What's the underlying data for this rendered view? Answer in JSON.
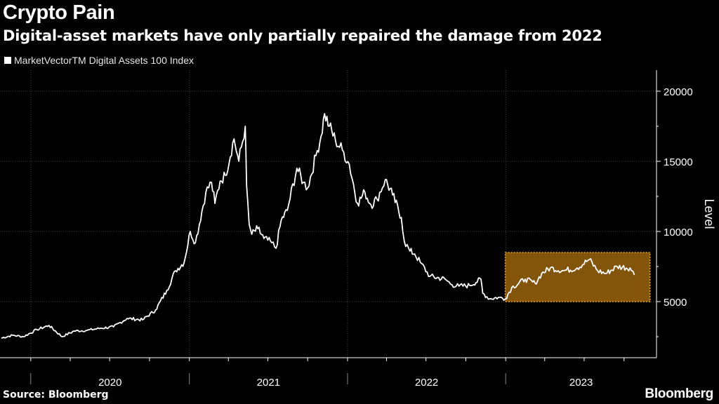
{
  "header": {
    "title": "Crypto Pain",
    "subtitle": "Digital-asset markets have only partially repaired the damage from 2022"
  },
  "footer": {
    "source": "Source: Bloomberg",
    "brand": "Bloomberg"
  },
  "colors": {
    "background": "#000000",
    "line": "#ffffff",
    "highlight_fill": "#8a5a0c",
    "highlight_border": "#f5a623",
    "grid": "#444444"
  },
  "chart_data": {
    "type": "line",
    "title": "Crypto Pain",
    "subtitle": "Digital-asset markets have only partially repaired the damage from 2022",
    "ylabel": "Level",
    "ylim": [
      1000,
      21500
    ],
    "xlim": [
      "2019-10-22",
      "2023-12-15"
    ],
    "y_ticks": [
      5000,
      10000,
      15000,
      20000
    ],
    "x_tick_labels": [
      "2020",
      "2021",
      "2022",
      "2023"
    ],
    "grid": true,
    "legend_position": "top-left",
    "highlight": {
      "x_start": "2022-12-31",
      "x_end": "2023-11-30",
      "y_start": 5000,
      "y_end": 8500
    },
    "series": [
      {
        "name": "MarketVectorTM Digital Assets 100 Index",
        "x": [
          "2019-10-25",
          "2019-11-20",
          "2019-12-15",
          "2020-01-15",
          "2020-02-12",
          "2020-03-13",
          "2020-04-10",
          "2020-05-10",
          "2020-06-10",
          "2020-07-10",
          "2020-08-10",
          "2020-09-15",
          "2020-10-15",
          "2020-11-10",
          "2020-11-30",
          "2020-12-20",
          "2021-01-03",
          "2021-01-15",
          "2021-02-08",
          "2021-02-21",
          "2021-03-01",
          "2021-03-13",
          "2021-03-25",
          "2021-04-14",
          "2021-04-25",
          "2021-05-10",
          "2021-05-13",
          "2021-05-19",
          "2021-05-25",
          "2021-06-08",
          "2021-06-22",
          "2021-07-10",
          "2021-07-20",
          "2021-08-01",
          "2021-08-15",
          "2021-09-06",
          "2021-09-21",
          "2021-10-01",
          "2021-10-20",
          "2021-11-01",
          "2021-11-09",
          "2021-11-20",
          "2021-12-04",
          "2021-12-20",
          "2022-01-05",
          "2022-01-24",
          "2022-02-10",
          "2022-02-24",
          "2022-03-10",
          "2022-03-29",
          "2022-04-15",
          "2022-05-05",
          "2022-05-12",
          "2022-05-25",
          "2022-06-05",
          "2022-06-18",
          "2022-07-10",
          "2022-08-14",
          "2022-08-30",
          "2022-09-15",
          "2022-10-10",
          "2022-11-05",
          "2022-11-09",
          "2022-11-25",
          "2022-12-15",
          "2022-12-31",
          "2023-01-15",
          "2023-02-15",
          "2023-03-10",
          "2023-03-25",
          "2023-04-14",
          "2023-05-15",
          "2023-06-15",
          "2023-07-13",
          "2023-08-01",
          "2023-08-20",
          "2023-09-15",
          "2023-10-15",
          "2023-10-25"
        ],
        "values": [
          2400,
          2600,
          2500,
          3000,
          3300,
          2500,
          2900,
          2950,
          3100,
          3200,
          3800,
          3700,
          4400,
          5800,
          7200,
          7800,
          10000,
          9200,
          12800,
          13500,
          12000,
          13600,
          14000,
          16600,
          15000,
          17500,
          13300,
          10500,
          9800,
          10200,
          9500,
          9200,
          8800,
          10800,
          11500,
          14500,
          13500,
          13100,
          15400,
          16800,
          18400,
          17500,
          16500,
          15800,
          14800,
          12000,
          12800,
          11900,
          12300,
          13700,
          12600,
          11000,
          9300,
          8600,
          8400,
          7800,
          6800,
          6600,
          6200,
          6100,
          6150,
          6600,
          5600,
          5200,
          5300,
          5200,
          6000,
          6600,
          6300,
          7000,
          7400,
          7200,
          7400,
          8000,
          7200,
          7000,
          7500,
          7400,
          6900
        ]
      }
    ]
  }
}
